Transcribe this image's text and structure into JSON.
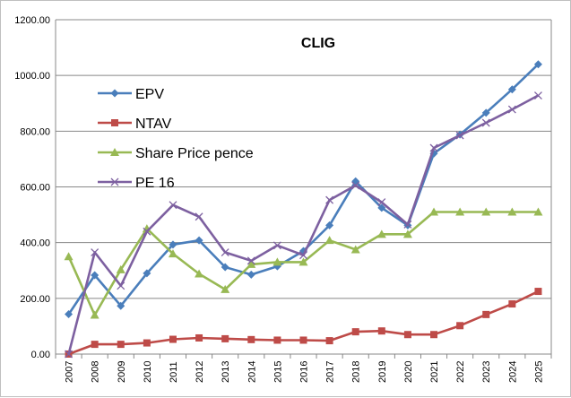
{
  "chart_data": {
    "type": "line",
    "title": "CLIG",
    "xlabel": "",
    "ylabel": "",
    "ylim": [
      0,
      1200
    ],
    "y_ticks": [
      "0.00",
      "200.00",
      "400.00",
      "600.00",
      "800.00",
      "1000.00",
      "1200.00"
    ],
    "grid": "horizontal",
    "legend_position": "left, upper-middle",
    "categories": [
      "2007",
      "2008",
      "2009",
      "2010",
      "2011",
      "2012",
      "2013",
      "2014",
      "2015",
      "2016",
      "2017",
      "2018",
      "2019",
      "2020",
      "2021",
      "2022",
      "2023",
      "2024",
      "2025"
    ],
    "series": [
      {
        "name": "EPV",
        "color": "#4a7ebb",
        "marker": "diamond",
        "values": [
          143,
          283,
          173,
          290,
          393,
          408,
          312,
          285,
          315,
          370,
          462,
          620,
          525,
          462,
          720,
          788,
          866,
          950,
          1040
        ]
      },
      {
        "name": "NTAV",
        "color": "#be4b48",
        "marker": "square",
        "values": [
          0,
          35,
          35,
          40,
          53,
          58,
          55,
          52,
          50,
          50,
          48,
          80,
          83,
          70,
          70,
          102,
          142,
          180,
          225
        ]
      },
      {
        "name": "Share Price pence",
        "color": "#98b954",
        "marker": "triangle",
        "values": [
          350,
          140,
          303,
          450,
          360,
          288,
          232,
          322,
          330,
          330,
          408,
          375,
          430,
          430,
          510,
          510,
          510,
          510,
          510
        ]
      },
      {
        "name": "PE 16",
        "color": "#7d60a0",
        "marker": "x",
        "values": [
          0,
          365,
          245,
          440,
          535,
          493,
          365,
          335,
          390,
          355,
          553,
          605,
          545,
          465,
          740,
          785,
          830,
          878,
          928
        ]
      }
    ]
  }
}
